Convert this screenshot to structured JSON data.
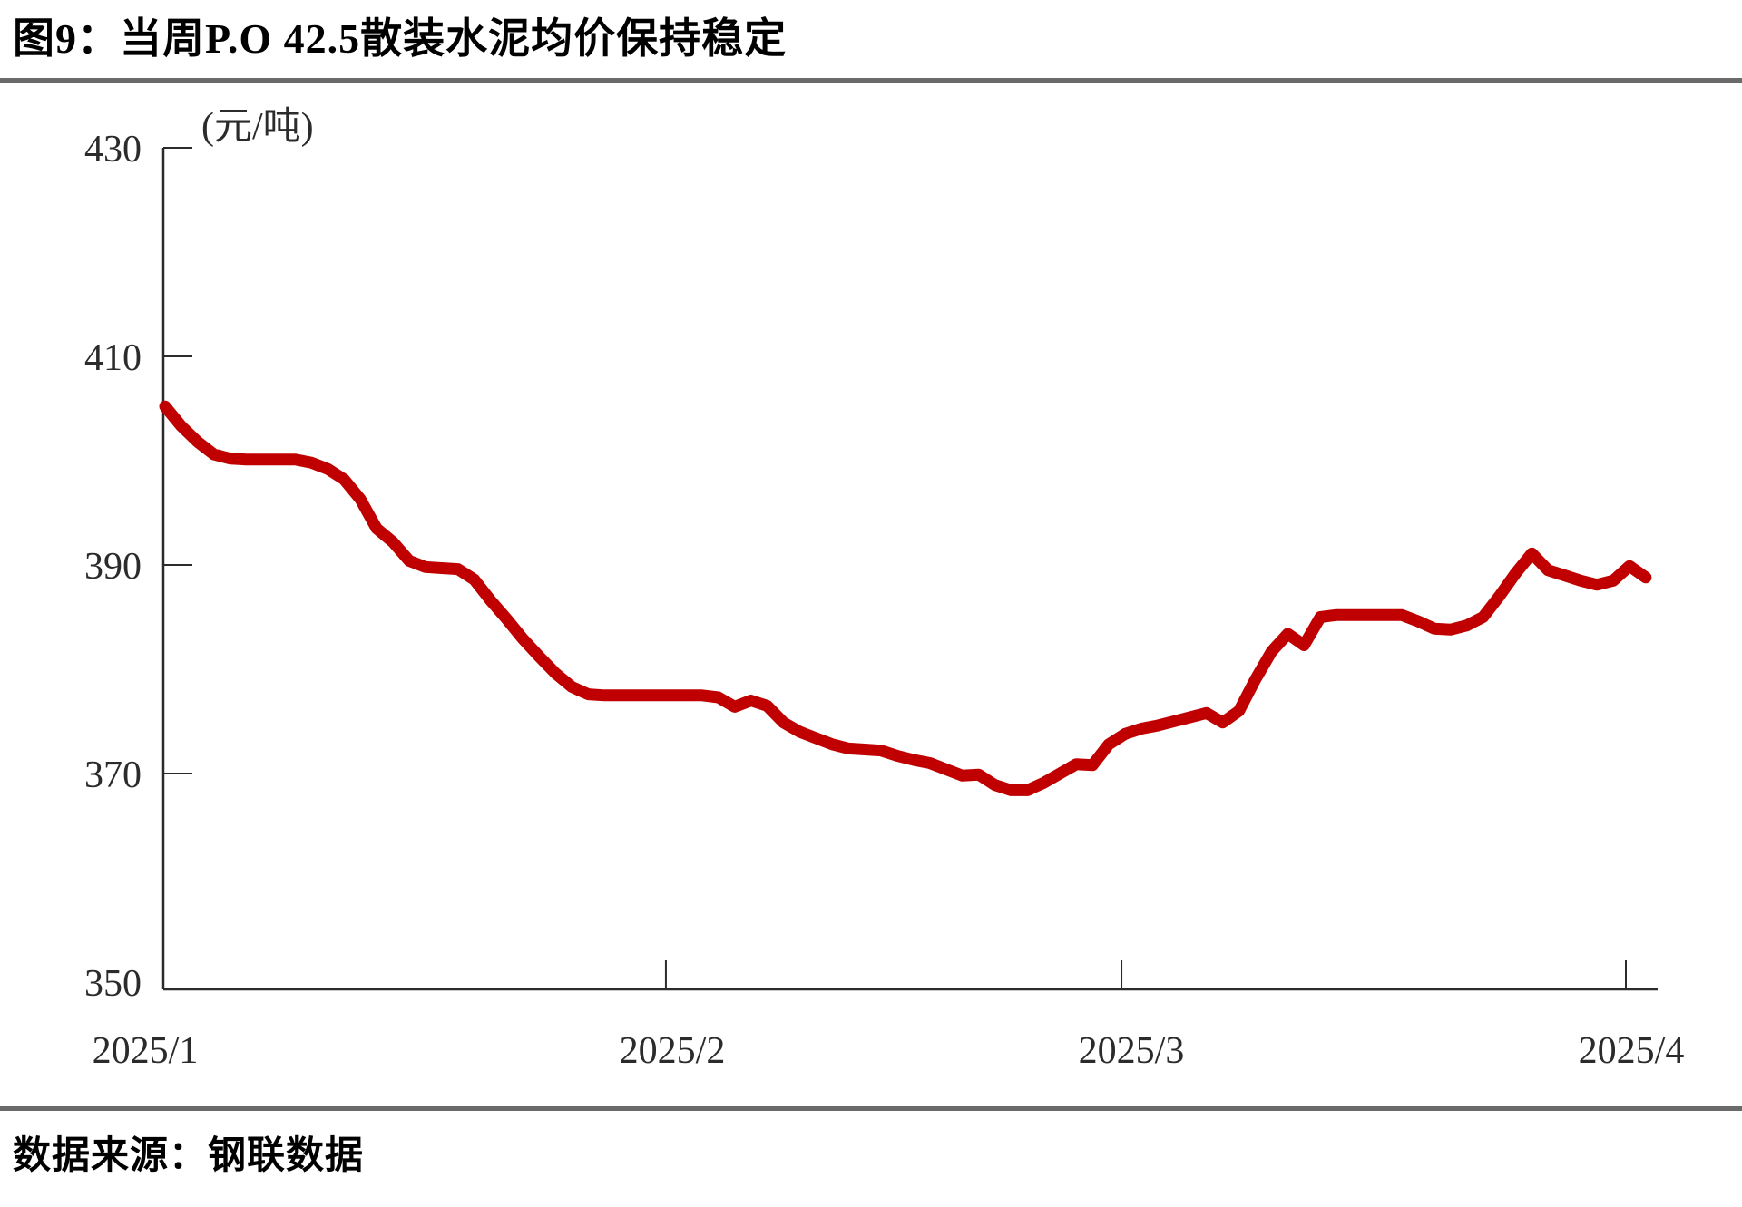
{
  "title": "图9：当周P.O 42.5散装水泥均价保持稳定",
  "footer": {
    "source_label": "数据来源：钢联数据"
  },
  "chart_data": {
    "type": "line",
    "title": "当周P.O 42.5散装水泥均价保持稳定",
    "unit_label": "(元/吨)",
    "ylabel": "元/吨",
    "ylim": [
      350,
      430
    ],
    "y_ticks": [
      430,
      410,
      390,
      370,
      350
    ],
    "x_tick_labels": [
      "2025/1",
      "2025/2",
      "2025/3",
      "2025/4"
    ],
    "x_tick_days": [
      0,
      31,
      59,
      90
    ],
    "start_date": "2025/1/1",
    "frequency": "daily",
    "grid": false,
    "legend": "none",
    "line_color": "#c00000",
    "axis_color": "#2b2b2b",
    "series": [
      {
        "name": "P.O 42.5散装水泥均价",
        "values": [
          405.2,
          403.3,
          401.8,
          400.6,
          400.2,
          400.1,
          400.1,
          400.1,
          400.1,
          399.8,
          399.2,
          398.2,
          396.3,
          393.5,
          392.2,
          390.4,
          389.8,
          389.7,
          389.6,
          388.6,
          386.6,
          384.8,
          382.9,
          381.2,
          379.6,
          378.3,
          377.6,
          377.5,
          377.5,
          377.5,
          377.5,
          377.5,
          377.5,
          377.5,
          377.3,
          376.4,
          377.0,
          376.5,
          374.9,
          374.0,
          373.4,
          372.8,
          372.4,
          372.3,
          372.2,
          371.7,
          371.3,
          371.0,
          370.4,
          369.8,
          369.9,
          368.9,
          368.4,
          368.4,
          369.1,
          370.0,
          370.9,
          370.8,
          372.8,
          373.8,
          374.3,
          374.6,
          375.0,
          375.4,
          375.8,
          374.9,
          376.0,
          379.0,
          381.7,
          383.4,
          382.3,
          385.0,
          385.2,
          385.2,
          385.2,
          385.2,
          385.2,
          384.6,
          383.9,
          383.8,
          384.2,
          385.0,
          387.0,
          389.2,
          391.1,
          389.5,
          389.0,
          388.5,
          388.1,
          388.5,
          389.9,
          388.8
        ]
      }
    ]
  }
}
